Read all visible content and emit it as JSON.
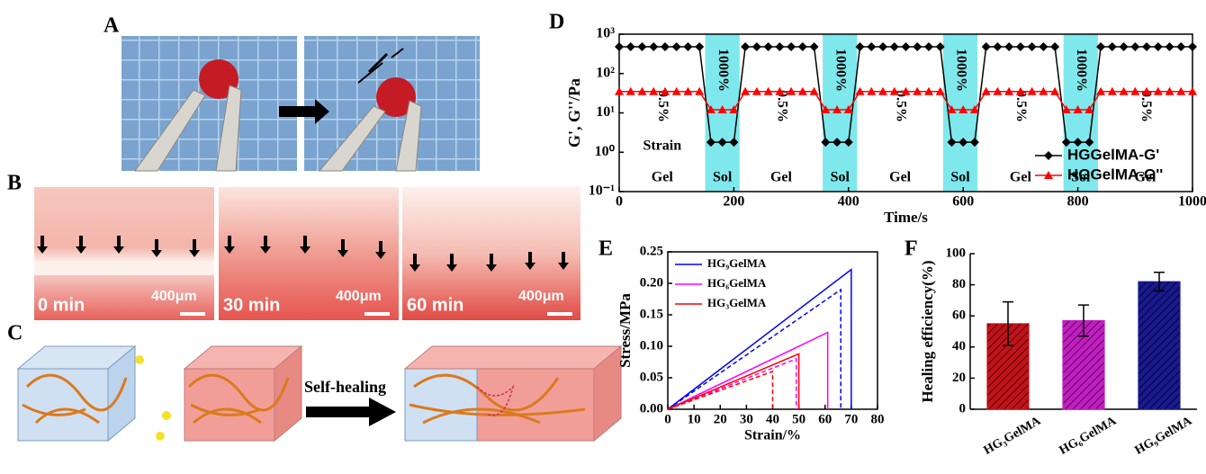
{
  "panel_labels": [
    "A",
    "B",
    "C",
    "D",
    "E",
    "F"
  ],
  "panel_b": {
    "times": [
      "0 min",
      "30 min",
      "60 min"
    ],
    "scale_bar": "400μm"
  },
  "panel_c": {
    "arrow_label": "Self-healing"
  },
  "chart_data": [
    {
      "type": "line",
      "log_y": true,
      "xlabel": "Time/s",
      "ylabel": "G', G''/Pa",
      "x": [
        0,
        20,
        40,
        60,
        80,
        100,
        120,
        140,
        160,
        180,
        200,
        220,
        240,
        260,
        280,
        300,
        320,
        340,
        360,
        380,
        400,
        420,
        440,
        460,
        480,
        500,
        520,
        540,
        560,
        580,
        600,
        620,
        640,
        660,
        680,
        700,
        720,
        740,
        760,
        780,
        800,
        820,
        840,
        860,
        880,
        900,
        920,
        940,
        960,
        980,
        1000
      ],
      "series": [
        {
          "name": "HGGelMA-G'",
          "color": "#000000",
          "marker": "diamond",
          "values": [
            480,
            480,
            480,
            480,
            480,
            480,
            480,
            480,
            1.8,
            1.8,
            1.8,
            480,
            480,
            480,
            480,
            480,
            480,
            480,
            1.8,
            1.8,
            1.8,
            480,
            480,
            480,
            480,
            480,
            480,
            480,
            480,
            1.8,
            1.8,
            1.8,
            480,
            480,
            480,
            480,
            480,
            480,
            480,
            1.8,
            1.8,
            1.8,
            480,
            480,
            480,
            480,
            480,
            480,
            480,
            480,
            480
          ]
        },
        {
          "name": "HGGelMA-G''",
          "color": "#ff0000",
          "marker": "triangle",
          "values": [
            35,
            35,
            35,
            35,
            35,
            35,
            35,
            35,
            12,
            12,
            12,
            35,
            35,
            35,
            35,
            35,
            35,
            35,
            12,
            12,
            12,
            35,
            35,
            35,
            35,
            35,
            35,
            35,
            35,
            12,
            12,
            12,
            35,
            35,
            35,
            35,
            35,
            35,
            35,
            12,
            12,
            12,
            35,
            35,
            35,
            35,
            35,
            35,
            35,
            35,
            35
          ]
        }
      ],
      "sol_regions": [
        [
          150,
          210
        ],
        [
          355,
          415
        ],
        [
          565,
          625
        ],
        [
          775,
          835
        ]
      ],
      "sol_strain": "1000%",
      "gel_strain": "0.5%",
      "sol_label": "Sol",
      "gel_label": "Gel",
      "strain_label": "Strain",
      "region_color": "#7fe8ec",
      "xlim": [
        0,
        1000
      ],
      "xticks": [
        0,
        200,
        400,
        600,
        800,
        1000
      ],
      "ylim": [
        0.1,
        1000
      ],
      "yticks": [
        {
          "value": 0.1,
          "label": "10⁻¹"
        },
        {
          "value": 1,
          "label": "10⁰"
        },
        {
          "value": 10,
          "label": "10¹"
        },
        {
          "value": 100,
          "label": "10²"
        },
        {
          "value": 1000,
          "label": "10³"
        }
      ],
      "legend": "lower right"
    },
    {
      "type": "line",
      "log_y": false,
      "xlabel": "Strain/%",
      "ylabel": "Stress/MPa",
      "series": [
        {
          "name": "HG₉GelMA",
          "color": "#0000ff",
          "x": [
            0,
            70,
            70
          ],
          "values": [
            0,
            0.222,
            0
          ],
          "healed_x": [
            0,
            66,
            66
          ],
          "healed_values": [
            0,
            0.19,
            0
          ]
        },
        {
          "name": "HG₆GelMA",
          "color": "#ff00ff",
          "x": [
            0,
            61,
            61
          ],
          "values": [
            0,
            0.122,
            0
          ],
          "healed_x": [
            0,
            49,
            49
          ],
          "healed_values": [
            0,
            0.08,
            0
          ]
        },
        {
          "name": "HG₃GelMA",
          "color": "#ff0000",
          "x": [
            0,
            50,
            50
          ],
          "values": [
            0,
            0.088,
            0
          ],
          "healed_x": [
            0,
            40,
            40
          ],
          "healed_values": [
            0,
            0.06,
            0
          ]
        }
      ],
      "xlim": [
        0,
        80
      ],
      "xticks": [
        0,
        10,
        20,
        30,
        40,
        50,
        60,
        70,
        80
      ],
      "ylim": [
        0,
        0.25
      ],
      "yticks": [
        {
          "value": 0,
          "label": "0.00"
        },
        0.05,
        {
          "value": 0.1,
          "label": "0.10"
        },
        0.15,
        {
          "value": 0.2,
          "label": "0.20"
        },
        0.25
      ],
      "legend": "upper left"
    },
    {
      "type": "bar",
      "ylabel": "Healing efficiency(%)",
      "categories": [
        "HG₃GelMA",
        "HG₆GelMA",
        "HG₉GelMA"
      ],
      "values": [
        55,
        57,
        82
      ],
      "errors": [
        14,
        10,
        6
      ],
      "colors": [
        "#c0141c",
        "#c020c0",
        "#1a1a8c"
      ],
      "ylim": [
        0,
        100
      ],
      "yticks": [
        0,
        20,
        40,
        60,
        80,
        100
      ]
    }
  ]
}
